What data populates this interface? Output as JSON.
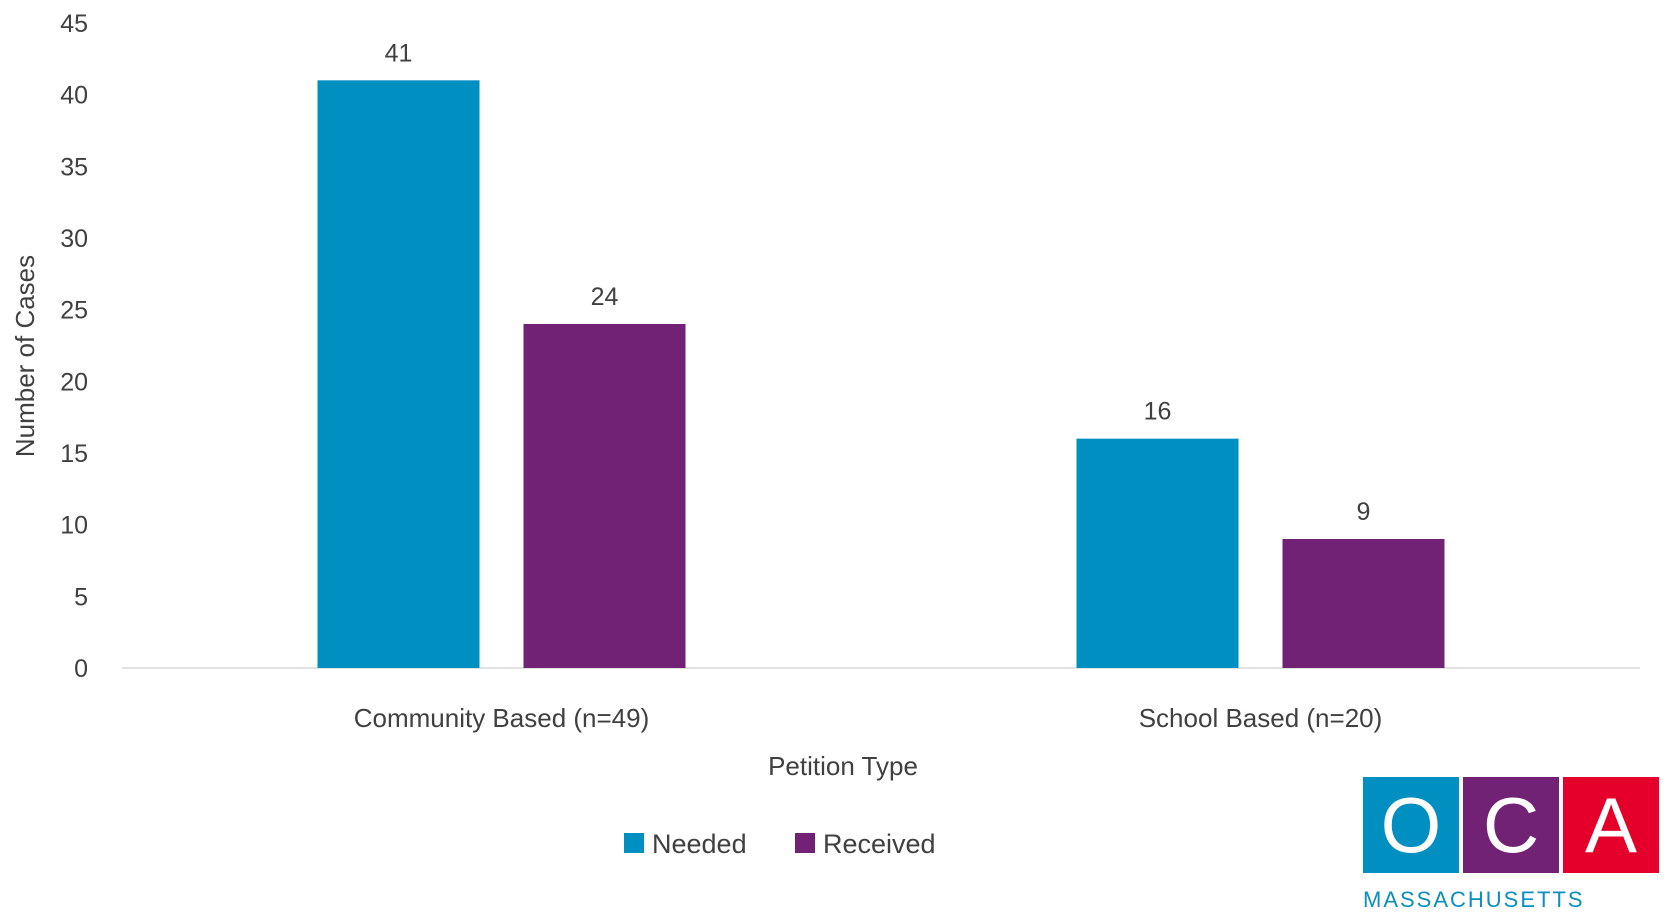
{
  "chart_data": {
    "type": "bar",
    "categories": [
      "Community Based (n=49)",
      "School Based (n=20)"
    ],
    "series": [
      {
        "name": "Needed",
        "values": [
          41,
          16
        ],
        "color": "#008fc1"
      },
      {
        "name": "Received",
        "values": [
          24,
          9
        ],
        "color": "#712275"
      }
    ],
    "title": "",
    "xlabel": "Petition Type",
    "ylabel": "Number of Cases",
    "ylim": [
      0,
      45
    ],
    "yticks": [
      0,
      5,
      10,
      15,
      20,
      25,
      30,
      35,
      40,
      45
    ],
    "grid": false,
    "legend_position": "bottom-center",
    "data_labels": true
  },
  "logo": {
    "letters": [
      "O",
      "C",
      "A"
    ],
    "colors": [
      "#008fc1",
      "#712275",
      "#e4002b"
    ],
    "subtext": "MASSACHUSETTS"
  }
}
